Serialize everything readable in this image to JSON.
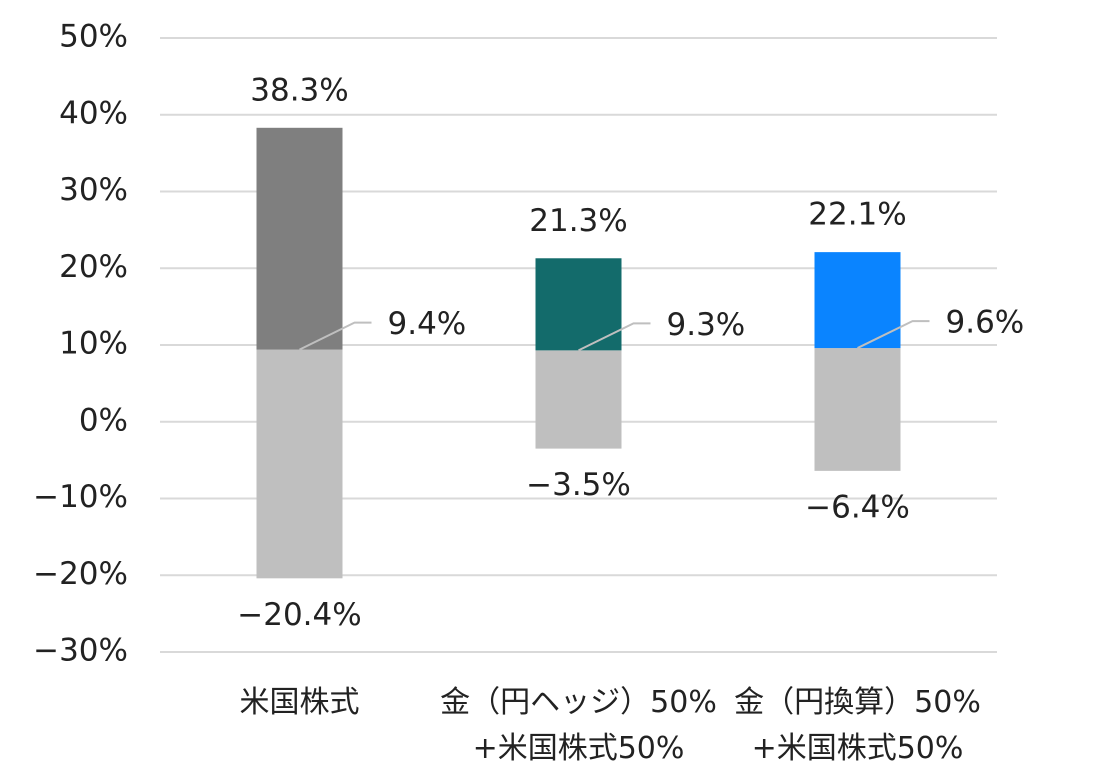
{
  "chart_data": {
    "type": "range-bar",
    "categories": [
      "米国株式",
      "金（円ヘッジ）50%\n+米国株式50%",
      "金（円換算）50%\n+米国株式50%"
    ],
    "high": {
      "values": [
        38.3,
        21.3,
        22.1
      ],
      "value_labels": [
        "38.3%",
        "21.3%",
        "22.1%"
      ]
    },
    "mean": {
      "values": [
        9.4,
        9.3,
        9.6
      ],
      "value_labels": [
        "9.4%",
        "9.3%",
        "9.6%"
      ]
    },
    "low": {
      "values": [
        -20.4,
        -3.5,
        -6.4
      ],
      "value_labels": [
        "−20.4%",
        "−3.5%",
        "−6.4%"
      ]
    },
    "colors": [
      "#7f7f7f",
      "#136b6b",
      "#0a84ff"
    ],
    "lower_color": "#bfbfbf",
    "ylim": [
      -30,
      50
    ],
    "yticks": [
      {
        "value": -30,
        "label": "−30%"
      },
      {
        "value": -20,
        "label": "−20%"
      },
      {
        "value": -10,
        "label": "−10%"
      },
      {
        "value": 0,
        "label": "0%"
      },
      {
        "value": 10,
        "label": "10%"
      },
      {
        "value": 20,
        "label": "20%"
      },
      {
        "value": 30,
        "label": "30%"
      },
      {
        "value": 40,
        "label": "40%"
      },
      {
        "value": 50,
        "label": "50%"
      }
    ],
    "grid": true
  }
}
